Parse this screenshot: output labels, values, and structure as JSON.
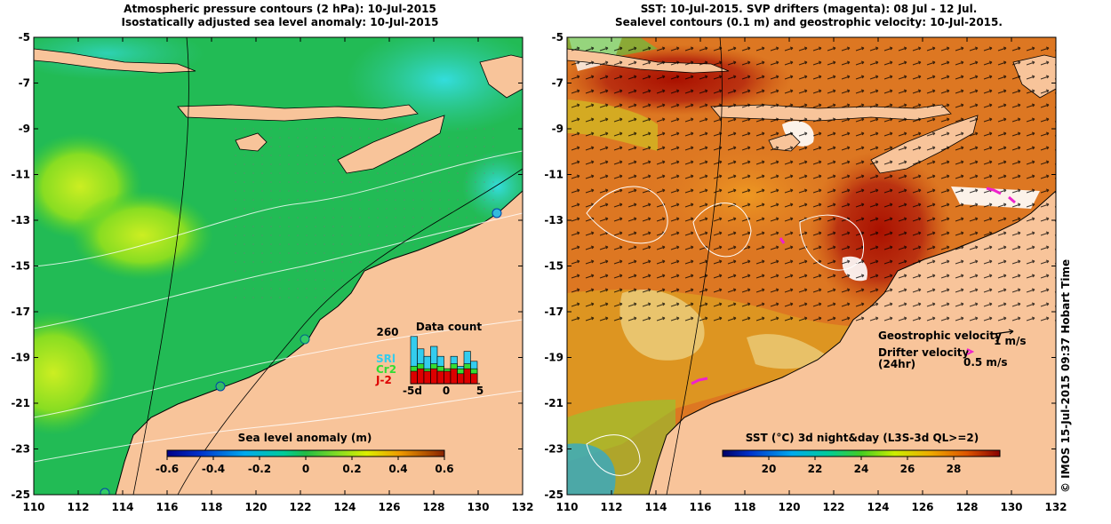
{
  "left_panel": {
    "title_line1": "Atmospheric pressure contours (2 hPa): 10-Jul-2015",
    "title_line2": "Isostatically adjusted sea level anomaly: 10-Jul-2015",
    "x_ticks": [
      "110",
      "112",
      "114",
      "116",
      "118",
      "120",
      "122",
      "124",
      "126",
      "128",
      "130",
      "132"
    ],
    "y_ticks": [
      "-5",
      "-7",
      "-9",
      "-11",
      "-13",
      "-15",
      "-17",
      "-19",
      "-21",
      "-23",
      "-25"
    ],
    "colorbar_title": "Sea level anomaly (m)",
    "colorbar_ticks": [
      "-0.6",
      "-0.4",
      "-0.2",
      "0",
      "0.2",
      "0.4",
      "0.6"
    ],
    "data_count": {
      "title": "Data count",
      "max_label": "260",
      "series_labels": [
        "SRl",
        "Cr2",
        "J-2"
      ],
      "series_colors": [
        "#33ccee",
        "#33dd33",
        "#dd0000"
      ],
      "x_ticks": [
        "-5d",
        "0",
        "5"
      ],
      "bars": [
        {
          "srl": 0.95,
          "cr2": 0.35,
          "j2": 0.25
        },
        {
          "srl": 0.7,
          "cr2": 0.4,
          "j2": 0.3
        },
        {
          "srl": 0.55,
          "cr2": 0.3,
          "j2": 0.25
        },
        {
          "srl": 0.75,
          "cr2": 0.4,
          "j2": 0.3
        },
        {
          "srl": 0.55,
          "cr2": 0.35,
          "j2": 0.25
        },
        {
          "srl": 0.3,
          "cr2": 0.3,
          "j2": 0.25
        },
        {
          "srl": 0.55,
          "cr2": 0.4,
          "j2": 0.3
        },
        {
          "srl": 0.35,
          "cr2": 0.3,
          "j2": 0.2
        },
        {
          "srl": 0.65,
          "cr2": 0.4,
          "j2": 0.3
        },
        {
          "srl": 0.45,
          "cr2": 0.3,
          "j2": 0.2
        }
      ]
    }
  },
  "right_panel": {
    "title_line1": "SST: 10-Jul-2015. SVP drifters (magenta): 08 Jul - 12 Jul.",
    "title_line2": "Sealevel contours (0.1 m) and geostrophic velocity: 10-Jul-2015.",
    "x_ticks": [
      "110",
      "112",
      "114",
      "116",
      "118",
      "120",
      "122",
      "124",
      "126",
      "128",
      "130",
      "132"
    ],
    "y_ticks": [
      "-5",
      "-7",
      "-9",
      "-11",
      "-13",
      "-15",
      "-17",
      "-19",
      "-21",
      "-23",
      "-25"
    ],
    "legend": {
      "geo_label": "Geostrophic velocity",
      "geo_scale": "1 m/s",
      "drifter_label": "Drifter velocity",
      "drifter_sub": "(24hr)",
      "drifter_scale": "0.5 m/s"
    },
    "colorbar_title": "SST (°C) 3d night&day (L3S-3d QL>=2)",
    "colorbar_ticks": [
      "20",
      "22",
      "24",
      "26",
      "28"
    ]
  },
  "credit": "© IMOS 15-Jul-2015 09:37 Hobart Time",
  "colors": {
    "land": "#f8c49a",
    "sea_green": "#22bb55",
    "sst_orange": "#dd7722",
    "drifter": "#ee22cc"
  }
}
